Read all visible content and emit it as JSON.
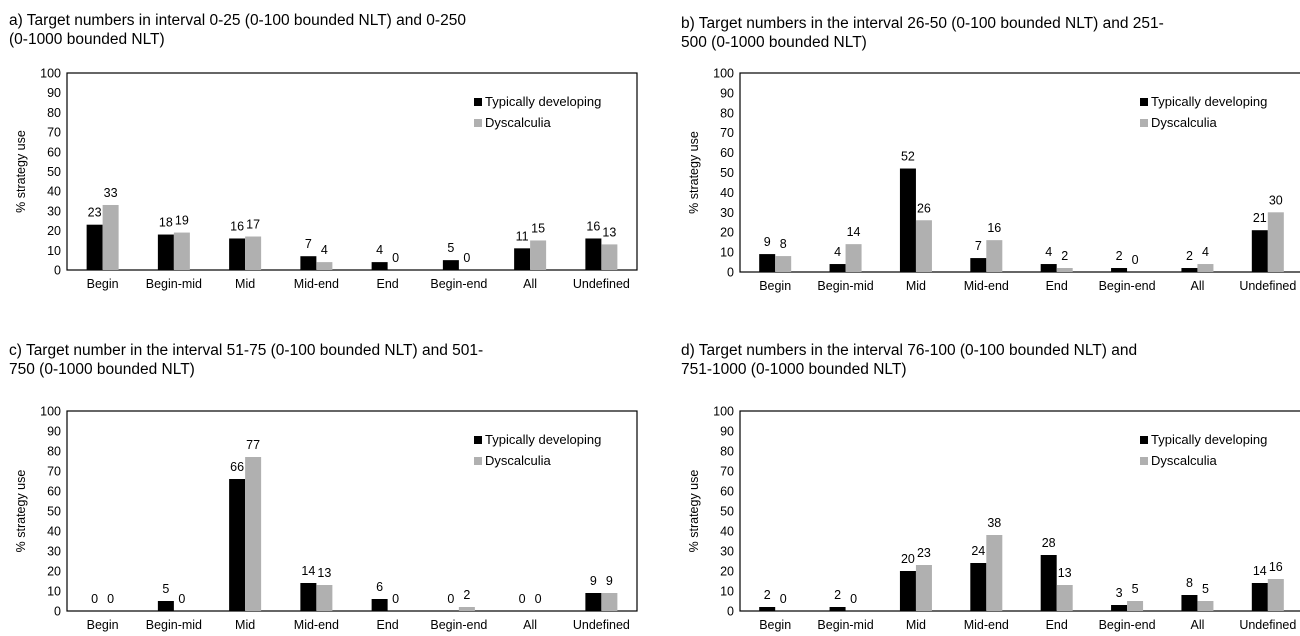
{
  "colors": {
    "typically_developing": "#000000",
    "dyscalculia": "#b0b0b0"
  },
  "chart_data": [
    {
      "type": "bar",
      "title": "a) Target numbers in interval 0-25 (0-100 bounded NLT) and 0-250\n(0-1000 bounded NLT)",
      "xlabel": "",
      "ylabel": "% strategy use",
      "ylim": [
        0,
        100
      ],
      "yticks": [
        0,
        10,
        20,
        30,
        40,
        50,
        60,
        70,
        80,
        90,
        100
      ],
      "grid": false,
      "legend_position": "top-right",
      "categories": [
        "Begin",
        "Begin-mid",
        "Mid",
        "Mid-end",
        "End",
        "Begin-end",
        "All",
        "Undefined"
      ],
      "series": [
        {
          "name": "Typically developing",
          "values": [
            23,
            18,
            16,
            7,
            4,
            5,
            11,
            16
          ]
        },
        {
          "name": "Dyscalculia",
          "values": [
            33,
            19,
            17,
            4,
            0,
            0,
            15,
            13
          ]
        }
      ]
    },
    {
      "type": "bar",
      "title": "b) Target numbers in the interval 26-50 (0-100 bounded NLT) and 251-\n500 (0-1000 bounded NLT)",
      "xlabel": "",
      "ylabel": "% strategy use",
      "ylim": [
        0,
        100
      ],
      "yticks": [
        0,
        10,
        20,
        30,
        40,
        50,
        60,
        70,
        80,
        90,
        100
      ],
      "grid": false,
      "legend_position": "top-right",
      "categories": [
        "Begin",
        "Begin-mid",
        "Mid",
        "Mid-end",
        "End",
        "Begin-end",
        "All",
        "Undefined"
      ],
      "series": [
        {
          "name": "Typically developing",
          "values": [
            9,
            4,
            52,
            7,
            4,
            2,
            2,
            21
          ]
        },
        {
          "name": "Dyscalculia",
          "values": [
            8,
            14,
            26,
            16,
            2,
            0,
            4,
            30
          ]
        }
      ]
    },
    {
      "type": "bar",
      "title": "c) Target number in the interval 51-75 (0-100 bounded NLT) and 501-\n750 (0-1000 bounded NLT)",
      "xlabel": "",
      "ylabel": "% strategy use",
      "ylim": [
        0,
        100
      ],
      "yticks": [
        0,
        10,
        20,
        30,
        40,
        50,
        60,
        70,
        80,
        90,
        100
      ],
      "grid": false,
      "legend_position": "top-right",
      "categories": [
        "Begin",
        "Begin-mid",
        "Mid",
        "Mid-end",
        "End",
        "Begin-end",
        "All",
        "Undefined"
      ],
      "series": [
        {
          "name": "Typically developing",
          "values": [
            0,
            5,
            66,
            14,
            6,
            0,
            0,
            9
          ]
        },
        {
          "name": "Dyscalculia",
          "values": [
            0,
            0,
            77,
            13,
            0,
            2,
            0,
            9
          ]
        }
      ]
    },
    {
      "type": "bar",
      "title": "d) Target numbers in the interval 76-100 (0-100 bounded NLT) and\n751-1000 (0-1000 bounded NLT)",
      "xlabel": "",
      "ylabel": "% strategy use",
      "ylim": [
        0,
        100
      ],
      "yticks": [
        0,
        10,
        20,
        30,
        40,
        50,
        60,
        70,
        80,
        90,
        100
      ],
      "grid": false,
      "legend_position": "top-right",
      "categories": [
        "Begin",
        "Begin-mid",
        "Mid",
        "Mid-end",
        "End",
        "Begin-end",
        "All",
        "Undefined"
      ],
      "series": [
        {
          "name": "Typically developing",
          "values": [
            2,
            2,
            20,
            24,
            28,
            3,
            8,
            14
          ]
        },
        {
          "name": "Dyscalculia",
          "values": [
            0,
            0,
            23,
            38,
            13,
            5,
            5,
            16
          ]
        }
      ]
    }
  ]
}
